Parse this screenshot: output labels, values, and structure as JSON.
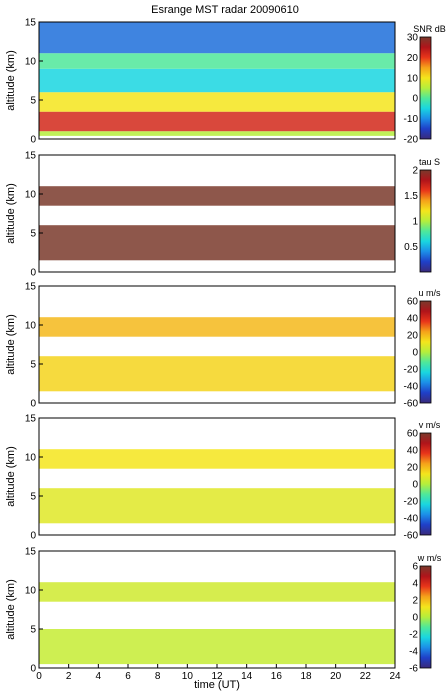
{
  "title": "Esrange MST radar 20090610",
  "xlabel": "time (UT)",
  "colorbar_stops": [
    "#3a2a7a",
    "#1f3fc8",
    "#1c8ee8",
    "#19d6e0",
    "#4fe89a",
    "#b5ee3c",
    "#f4e51c",
    "#f5a21a",
    "#e8351a",
    "#b0141a",
    "#7a3a2c"
  ],
  "colors": {
    "background": "#ffffff",
    "axis": "#000000"
  },
  "chart_data": [
    {
      "type": "heatmap",
      "panel": "snr",
      "quantity": "SNR",
      "unit_label": "SNR dB",
      "xlim": [
        0,
        24
      ],
      "ylim": [
        0,
        15
      ],
      "ylabel": "altitude (km)",
      "y_ticks": [
        "0",
        "5",
        "10",
        "15"
      ],
      "clim": [
        -20,
        30
      ],
      "cbar_ticks": [
        "30",
        "20",
        "10",
        "0",
        "-10",
        "-20"
      ],
      "x_ticks": [],
      "layers": [
        {
          "alt_range": [
            0.4,
            1.0
          ],
          "value": 5
        },
        {
          "alt_range": [
            1.0,
            3.5
          ],
          "value": 22
        },
        {
          "alt_range": [
            3.5,
            6.0
          ],
          "value": 10
        },
        {
          "alt_range": [
            6.0,
            9.0
          ],
          "value": -5
        },
        {
          "alt_range": [
            9.0,
            11.0
          ],
          "value": 0
        },
        {
          "alt_range": [
            11.0,
            15.0
          ],
          "value": -12
        }
      ]
    },
    {
      "type": "heatmap",
      "panel": "tau",
      "quantity": "tau",
      "unit_label": "tau S",
      "xlim": [
        0,
        24
      ],
      "ylim": [
        0,
        15
      ],
      "ylabel": "altitude (km)",
      "y_ticks": [
        "0",
        "5",
        "10",
        "15"
      ],
      "clim": [
        0,
        2
      ],
      "cbar_ticks": [
        "2",
        "1.5",
        "1",
        "0.5"
      ],
      "x_ticks": [],
      "layers": [
        {
          "alt_range": [
            1.5,
            6.0
          ],
          "value": 2.0
        },
        {
          "alt_range": [
            8.5,
            11.0
          ],
          "value": 2.0
        }
      ]
    },
    {
      "type": "heatmap",
      "panel": "u",
      "quantity": "u",
      "unit_label": "u m/s",
      "xlim": [
        0,
        24
      ],
      "ylim": [
        0,
        15
      ],
      "ylabel": "altitude (km)",
      "y_ticks": [
        "0",
        "5",
        "10",
        "15"
      ],
      "clim": [
        -60,
        60
      ],
      "cbar_ticks": [
        "60",
        "40",
        "20",
        "0",
        "-20",
        "-40",
        "-60"
      ],
      "x_ticks": [],
      "layers": [
        {
          "alt_range": [
            1.5,
            6.0
          ],
          "value": 15
        },
        {
          "alt_range": [
            8.5,
            11.0
          ],
          "value": 20
        }
      ]
    },
    {
      "type": "heatmap",
      "panel": "v",
      "quantity": "v",
      "unit_label": "v m/s",
      "xlim": [
        0,
        24
      ],
      "ylim": [
        0,
        15
      ],
      "ylabel": "altitude (km)",
      "y_ticks": [
        "0",
        "5",
        "10",
        "15"
      ],
      "clim": [
        -60,
        60
      ],
      "cbar_ticks": [
        "60",
        "40",
        "20",
        "0",
        "-20",
        "-40",
        "-60"
      ],
      "x_ticks": [],
      "layers": [
        {
          "alt_range": [
            1.5,
            6.0
          ],
          "value": 8
        },
        {
          "alt_range": [
            8.5,
            11.0
          ],
          "value": 12
        }
      ]
    },
    {
      "type": "heatmap",
      "panel": "w",
      "quantity": "w",
      "unit_label": "w m/s",
      "xlim": [
        0,
        24
      ],
      "ylim": [
        0,
        15
      ],
      "ylabel": "altitude (km)",
      "y_ticks": [
        "0",
        "5",
        "10",
        "15"
      ],
      "clim": [
        -6,
        6
      ],
      "cbar_ticks": [
        "6",
        "4",
        "2",
        "0",
        "-2",
        "-4",
        "-6"
      ],
      "x_ticks": [
        "0",
        "2",
        "4",
        "6",
        "8",
        "10",
        "12",
        "14",
        "16",
        "18",
        "20",
        "22",
        "24"
      ],
      "layers": [
        {
          "alt_range": [
            0.5,
            5.0
          ],
          "value": 0.3
        },
        {
          "alt_range": [
            8.5,
            11.0
          ],
          "value": 0.5
        }
      ]
    }
  ]
}
